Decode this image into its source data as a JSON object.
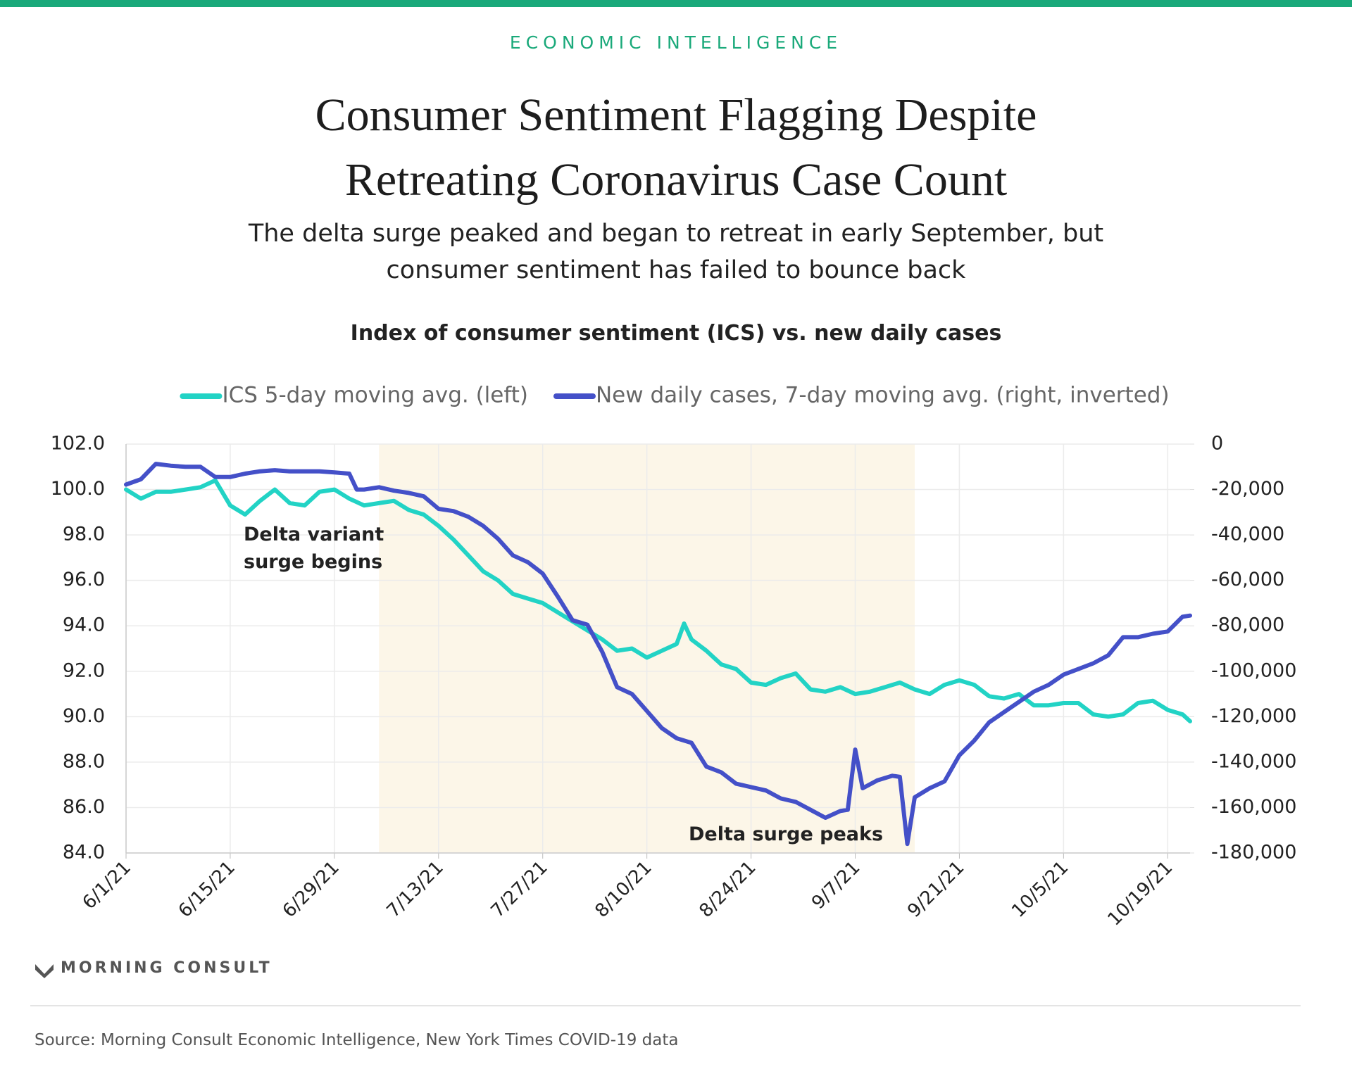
{
  "kicker": "ECONOMIC INTELLIGENCE",
  "logo": "MORNING CONSULT",
  "source": "Source: Morning Consult Economic Intelligence, New York Times COVID-19 data",
  "chart_data": {
    "type": "line",
    "title": "Consumer Sentiment Flagging Despite Retreating Coronavirus Case Count",
    "subtitle": "The delta surge peaked and began to retreat in early September, but consumer sentiment has failed to bounce back",
    "chart_title": "Index of consumer sentiment (ICS) vs. new daily cases",
    "annotations": [
      "Delta variant surge begins",
      "Delta surge peaks"
    ],
    "shaded_range": [
      "7/5/21",
      "9/15/21"
    ],
    "xlim": [
      "6/1/21",
      "10/22/21"
    ],
    "xticks": [
      "6/1/21",
      "6/15/21",
      "6/29/21",
      "7/13/21",
      "7/27/21",
      "8/10/21",
      "8/24/21",
      "9/7/21",
      "9/21/21",
      "10/5/21",
      "10/19/21"
    ],
    "ylim": [
      84,
      102
    ],
    "yticks": [
      {
        "value": 84,
        "label": "84.0"
      },
      {
        "value": 86,
        "label": "86.0"
      },
      {
        "value": 88,
        "label": "88.0"
      },
      {
        "value": 90,
        "label": "90.0"
      },
      {
        "value": 92,
        "label": "92.0"
      },
      {
        "value": 94,
        "label": "94.0"
      },
      {
        "value": 96,
        "label": "96.0"
      },
      {
        "value": 98,
        "label": "98.0"
      },
      {
        "value": 100,
        "label": "100.0"
      },
      {
        "value": 102,
        "label": "102.0"
      }
    ],
    "y2lim": [
      -180000,
      0
    ],
    "y2ticks": [
      {
        "value": -180000,
        "label": "-180,000"
      },
      {
        "value": -160000,
        "label": "-160,000"
      },
      {
        "value": -140000,
        "label": "-140,000"
      },
      {
        "value": -120000,
        "label": "-120,000"
      },
      {
        "value": -100000,
        "label": "-100,000"
      },
      {
        "value": -80000,
        "label": "-80,000"
      },
      {
        "value": -60000,
        "label": "-60,000"
      },
      {
        "value": -40000,
        "label": "-40,000"
      },
      {
        "value": -20000,
        "label": "-20,000"
      },
      0
    ],
    "grid": true,
    "series": [
      {
        "name": "ICS 5-day moving avg. (left)",
        "color": "#22d3c5",
        "x": [
          "6/1/21",
          "6/3/21",
          "6/5/21",
          "6/7/21",
          "6/9/21",
          "6/11/21",
          "6/13/21",
          "6/15/21",
          "6/17/21",
          "6/19/21",
          "6/21/21",
          "6/23/21",
          "6/25/21",
          "6/27/21",
          "6/29/21",
          "7/1/21",
          "7/3/21",
          "7/5/21",
          "7/7/21",
          "7/9/21",
          "7/11/21",
          "7/13/21",
          "7/15/21",
          "7/17/21",
          "7/19/21",
          "7/21/21",
          "7/23/21",
          "7/25/21",
          "7/27/21",
          "7/29/21",
          "7/31/21",
          "8/2/21",
          "8/4/21",
          "8/6/21",
          "8/8/21",
          "8/10/21",
          "8/12/21",
          "8/14/21",
          "8/15/21",
          "8/16/21",
          "8/18/21",
          "8/20/21",
          "8/22/21",
          "8/24/21",
          "8/26/21",
          "8/28/21",
          "8/30/21",
          "9/1/21",
          "9/3/21",
          "9/5/21",
          "9/7/21",
          "9/9/21",
          "9/11/21",
          "9/13/21",
          "9/15/21",
          "9/17/21",
          "9/19/21",
          "9/21/21",
          "9/23/21",
          "9/25/21",
          "9/27/21",
          "9/29/21",
          "10/1/21",
          "10/3/21",
          "10/5/21",
          "10/7/21",
          "10/9/21",
          "10/11/21",
          "10/13/21",
          "10/15/21",
          "10/17/21",
          "10/19/21",
          "10/21/21",
          "10/22/21"
        ],
        "values": [
          100.0,
          99.6,
          99.9,
          99.9,
          100.0,
          100.1,
          100.4,
          99.3,
          98.9,
          99.5,
          100.0,
          99.4,
          99.3,
          99.9,
          100.0,
          99.6,
          99.3,
          99.4,
          99.5,
          99.1,
          98.9,
          98.4,
          97.8,
          97.1,
          96.4,
          96.0,
          95.4,
          95.2,
          95.0,
          94.6,
          94.2,
          93.8,
          93.4,
          92.9,
          93.0,
          92.6,
          92.9,
          93.2,
          94.1,
          93.4,
          92.9,
          92.3,
          92.1,
          91.5,
          91.4,
          91.7,
          91.9,
          91.2,
          91.1,
          91.3,
          91.0,
          91.1,
          91.3,
          91.5,
          91.2,
          91.0,
          91.4,
          91.6,
          91.4,
          90.9,
          90.8,
          91.0,
          90.5,
          90.5,
          90.6,
          90.6,
          90.1,
          90.0,
          90.1,
          90.6,
          90.7,
          90.3,
          90.1,
          89.8
        ]
      },
      {
        "name": "New daily cases, 7-day moving avg. (right, inverted)",
        "color": "#4450c8",
        "axis": "y2",
        "x": [
          "6/1/21",
          "6/3/21",
          "6/5/21",
          "6/7/21",
          "6/9/21",
          "6/11/21",
          "6/13/21",
          "6/15/21",
          "6/17/21",
          "6/19/21",
          "6/21/21",
          "6/23/21",
          "6/25/21",
          "6/27/21",
          "6/29/21",
          "7/1/21",
          "7/2/21",
          "7/3/21",
          "7/5/21",
          "7/7/21",
          "7/9/21",
          "7/11/21",
          "7/13/21",
          "7/15/21",
          "7/17/21",
          "7/19/21",
          "7/21/21",
          "7/23/21",
          "7/25/21",
          "7/27/21",
          "7/29/21",
          "7/31/21",
          "8/2/21",
          "8/4/21",
          "8/6/21",
          "8/8/21",
          "8/10/21",
          "8/12/21",
          "8/14/21",
          "8/16/21",
          "8/18/21",
          "8/20/21",
          "8/22/21",
          "8/24/21",
          "8/26/21",
          "8/28/21",
          "8/30/21",
          "9/1/21",
          "9/3/21",
          "9/5/21",
          "9/6/21",
          "9/7/21",
          "9/8/21",
          "9/10/21",
          "9/12/21",
          "9/13/21",
          "9/14/21",
          "9/15/21",
          "9/17/21",
          "9/19/21",
          "9/21/21",
          "9/23/21",
          "9/25/21",
          "9/27/21",
          "9/29/21",
          "10/1/21",
          "10/3/21",
          "10/5/21",
          "10/7/21",
          "10/9/21",
          "10/11/21",
          "10/13/21",
          "10/15/21",
          "10/17/21",
          "10/19/21",
          "10/21/21",
          "10/22/21"
        ],
        "values": [
          -17800,
          -15500,
          -8700,
          -9500,
          -10000,
          -10000,
          -14500,
          -14500,
          -13000,
          -12000,
          -11500,
          -12000,
          -12000,
          -12000,
          -12500,
          -13000,
          -20000,
          -20000,
          -19000,
          -20500,
          -21500,
          -23000,
          -28500,
          -29500,
          -32000,
          -36000,
          -41700,
          -49000,
          -52000,
          -57000,
          -67000,
          -77500,
          -79500,
          -91500,
          -107000,
          -110000,
          -117500,
          -125000,
          -129500,
          -131500,
          -142000,
          -144500,
          -149500,
          -151000,
          -152500,
          -156000,
          -157500,
          -161000,
          -164500,
          -161500,
          -161000,
          -134500,
          -151500,
          -148000,
          -146000,
          -146500,
          -176000,
          -155500,
          -151500,
          -148500,
          -137000,
          -130500,
          -122500,
          -118000,
          -113500,
          -109000,
          -106000,
          -101500,
          -99000,
          -96500,
          -93000,
          -85000,
          -85000,
          -83500,
          -82500,
          -76000,
          -75500
        ]
      }
    ]
  }
}
